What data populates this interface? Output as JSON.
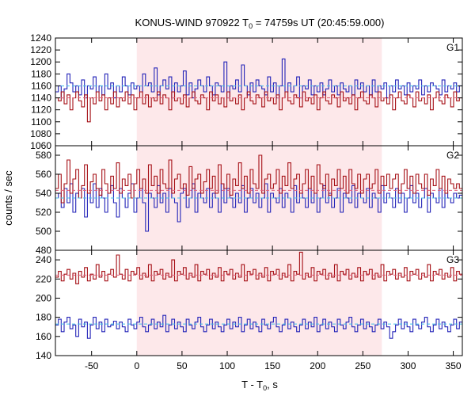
{
  "chart_data": {
    "type": "line",
    "title_main": "KONUS-WIND 970922 T",
    "title_sub": "0",
    "title_rest": " = 74759s UT (20:45:59.000)",
    "xlabel_main": "T - T",
    "xlabel_sub": "0",
    "xlabel_rest": ", s",
    "ylabel": "counts / sec",
    "xlim": [
      -90,
      360
    ],
    "x_ticks": [
      -50,
      0,
      50,
      100,
      150,
      200,
      250,
      300,
      350
    ],
    "highlight_interval": [
      0,
      271
    ],
    "colors": {
      "red": "#a50f15",
      "blue": "#2323b8",
      "highlight": "#fde8ea",
      "red_fit": "#e0607a",
      "blue_fit": "#40c0e8"
    },
    "panels": [
      {
        "name": "G1",
        "ylim": [
          1060,
          1240
        ],
        "y_ticks": [
          1060,
          1080,
          1100,
          1120,
          1140,
          1160,
          1180,
          1200,
          1220,
          1240
        ],
        "red_mean": 1140,
        "blue_mean": 1160,
        "blue": [
          1150,
          1160,
          1140,
          1155,
          1180,
          1165,
          1150,
          1160,
          1145,
          1170,
          1140,
          1160,
          1155,
          1175,
          1150,
          1160,
          1145,
          1180,
          1155,
          1165,
          1140,
          1160,
          1150,
          1175,
          1160,
          1145,
          1165,
          1155,
          1160,
          1150,
          1180,
          1160,
          1165,
          1150,
          1190,
          1145,
          1160,
          1170,
          1155,
          1175,
          1140,
          1165,
          1150,
          1160,
          1185,
          1145,
          1165,
          1140,
          1155,
          1170,
          1160,
          1150,
          1175,
          1160,
          1145,
          1165,
          1160,
          1150,
          1200,
          1140,
          1160,
          1155,
          1170,
          1150,
          1195,
          1160,
          1145,
          1165,
          1150,
          1170,
          1160,
          1155,
          1145,
          1175,
          1150,
          1165,
          1140,
          1160,
          1205,
          1150,
          1165,
          1150,
          1160,
          1175,
          1140,
          1160,
          1155,
          1170,
          1145,
          1160,
          1150,
          1165,
          1145,
          1155,
          1170,
          1150,
          1160,
          1145,
          1165,
          1155,
          1150,
          1160,
          1145,
          1170,
          1155,
          1165,
          1150,
          1160,
          1145,
          1170,
          1150,
          1160,
          1155,
          1165,
          1140,
          1160,
          1150,
          1170,
          1155,
          1160,
          1145,
          1165,
          1150,
          1160,
          1155,
          1170,
          1145,
          1160,
          1150,
          1165,
          1160,
          1155,
          1145,
          1170,
          1150,
          1160,
          1155,
          1165,
          1150,
          1160
        ],
        "red": [
          1140,
          1135,
          1150,
          1130,
          1145,
          1120,
          1140,
          1150,
          1135,
          1125,
          1145,
          1100,
          1140,
          1130,
          1150,
          1135,
          1145,
          1120,
          1140,
          1130,
          1150,
          1125,
          1140,
          1135,
          1150,
          1130,
          1145,
          1120,
          1140,
          1150,
          1130,
          1145,
          1125,
          1140,
          1135,
          1150,
          1130,
          1145,
          1140,
          1120,
          1150,
          1135,
          1140,
          1130,
          1145,
          1125,
          1140,
          1150,
          1135,
          1130,
          1145,
          1140,
          1120,
          1150,
          1135,
          1145,
          1130,
          1140,
          1125,
          1150,
          1135,
          1140,
          1130,
          1145,
          1120,
          1140,
          1150,
          1135,
          1130,
          1145,
          1140,
          1125,
          1150,
          1135,
          1140,
          1130,
          1145,
          1120,
          1140,
          1150,
          1135,
          1130,
          1145,
          1140,
          1125,
          1150,
          1135,
          1140,
          1130,
          1145,
          1120,
          1140,
          1150,
          1135,
          1130,
          1145,
          1140,
          1125,
          1150,
          1135,
          1140,
          1130,
          1145,
          1120,
          1140,
          1150,
          1135,
          1130,
          1145,
          1140,
          1125,
          1150,
          1135,
          1140,
          1130,
          1145,
          1120,
          1140,
          1150,
          1135,
          1130,
          1145,
          1140,
          1125,
          1150,
          1135,
          1140,
          1130,
          1145,
          1120,
          1140,
          1150,
          1135,
          1130,
          1145,
          1140,
          1125,
          1150,
          1135,
          1140
        ]
      },
      {
        "name": "G2",
        "ylim": [
          480,
          590
        ],
        "y_ticks": [
          480,
          500,
          520,
          540,
          560,
          580
        ],
        "red_mean": 543,
        "blue_mean": 535,
        "red": [
          545,
          560,
          530,
          550,
          575,
          540,
          555,
          565,
          535,
          548,
          570,
          540,
          552,
          560,
          545,
          538,
          565,
          550,
          540,
          558,
          545,
          572,
          540,
          555,
          548,
          560,
          535,
          550,
          565,
          545,
          555,
          540,
          570,
          548,
          558,
          540,
          565,
          550,
          545,
          575,
          540,
          555,
          560,
          545,
          550,
          538,
          568,
          545,
          555,
          560,
          540,
          552,
          565,
          545,
          558,
          540,
          570,
          550,
          545,
          560,
          538,
          555,
          548,
          572,
          545,
          558,
          540,
          565,
          550,
          545,
          580,
          540,
          555,
          560,
          545,
          550,
          565,
          540,
          558,
          548,
          572,
          545,
          555,
          560,
          540,
          550,
          565,
          545,
          558,
          540,
          570,
          550,
          545,
          560,
          538,
          555,
          548,
          565,
          545,
          558,
          540,
          565,
          550,
          545,
          560,
          540,
          555,
          560,
          545,
          550,
          565,
          540,
          558,
          548,
          560,
          545,
          555,
          560,
          540,
          550,
          565,
          545,
          558,
          540,
          560,
          550,
          545,
          560,
          538,
          555,
          548,
          565,
          545,
          558,
          540,
          555,
          550,
          545,
          550,
          545
        ],
        "blue": [
          535,
          540,
          525,
          545,
          530,
          550,
          520,
          540,
          535,
          545,
          515,
          540,
          530,
          550,
          525,
          545,
          535,
          520,
          540,
          548,
          530,
          515,
          545,
          535,
          525,
          540,
          550,
          520,
          535,
          545,
          530,
          500,
          540,
          535,
          525,
          548,
          530,
          540,
          520,
          545,
          535,
          530,
          510,
          540,
          545,
          525,
          535,
          550,
          520,
          540,
          535,
          530,
          545,
          525,
          540,
          535,
          520,
          550,
          530,
          545,
          535,
          525,
          540,
          530,
          548,
          520,
          535,
          545,
          530,
          540,
          525,
          535,
          550,
          520,
          540,
          535,
          530,
          545,
          525,
          540,
          535,
          520,
          548,
          530,
          540,
          535,
          525,
          545,
          530,
          540,
          520,
          535,
          548,
          530,
          540,
          525,
          535,
          545,
          520,
          540,
          535,
          530,
          548,
          525,
          540,
          535,
          530,
          545,
          525,
          540,
          535,
          520,
          548,
          530,
          540,
          535,
          525,
          545,
          530,
          540,
          520,
          535,
          548,
          530,
          540,
          525,
          535,
          545,
          520,
          540,
          535,
          530,
          545,
          525,
          540,
          535,
          530,
          540,
          535,
          538
        ]
      },
      {
        "name": "G3",
        "ylim": [
          140,
          250
        ],
        "y_ticks": [
          140,
          160,
          180,
          200,
          220,
          240
        ],
        "red_mean": 224,
        "blue_mean": 173,
        "red": [
          222,
          228,
          218,
          225,
          230,
          220,
          226,
          215,
          228,
          222,
          232,
          218,
          225,
          220,
          235,
          222,
          228,
          218,
          225,
          230,
          222,
          245,
          225,
          220,
          230,
          218,
          228,
          225,
          232,
          220,
          226,
          222,
          235,
          218,
          228,
          225,
          230,
          220,
          226,
          222,
          240,
          218,
          228,
          225,
          232,
          220,
          226,
          222,
          235,
          218,
          228,
          225,
          230,
          220,
          226,
          222,
          232,
          218,
          228,
          225,
          230,
          220,
          226,
          222,
          235,
          218,
          228,
          225,
          230,
          220,
          226,
          222,
          232,
          218,
          228,
          225,
          230,
          220,
          226,
          222,
          235,
          218,
          228,
          225,
          248,
          220,
          226,
          222,
          232,
          218,
          228,
          225,
          230,
          220,
          226,
          222,
          235,
          218,
          228,
          225,
          230,
          220,
          226,
          222,
          232,
          218,
          228,
          225,
          230,
          220,
          226,
          222,
          235,
          218,
          228,
          225,
          230,
          220,
          226,
          222,
          232,
          218,
          228,
          225,
          230,
          220,
          226,
          222,
          235,
          218,
          228,
          225,
          230,
          220,
          226,
          222,
          232,
          218,
          228,
          225
        ],
        "blue": [
          172,
          178,
          165,
          175,
          180,
          168,
          172,
          160,
          178,
          170,
          175,
          158,
          172,
          180,
          168,
          175,
          165,
          178,
          170,
          172,
          176,
          168,
          175,
          170,
          165,
          178,
          172,
          168,
          175,
          180,
          170,
          165,
          172,
          178,
          168,
          175,
          170,
          182,
          165,
          172,
          178,
          168,
          175,
          170,
          165,
          178,
          172,
          168,
          175,
          180,
          170,
          165,
          172,
          178,
          168,
          175,
          170,
          165,
          172,
          178,
          168,
          175,
          170,
          180,
          165,
          172,
          178,
          168,
          175,
          170,
          165,
          178,
          172,
          168,
          175,
          180,
          170,
          165,
          172,
          178,
          168,
          175,
          170,
          165,
          172,
          178,
          168,
          175,
          170,
          180,
          165,
          172,
          178,
          168,
          175,
          170,
          165,
          178,
          172,
          168,
          175,
          180,
          170,
          165,
          172,
          178,
          168,
          175,
          170,
          165,
          172,
          178,
          168,
          175,
          170,
          158,
          165,
          172,
          178,
          168,
          175,
          170,
          165,
          178,
          172,
          168,
          175,
          180,
          170,
          165,
          172,
          178,
          168,
          175,
          170,
          165,
          172,
          178,
          168,
          175
        ]
      }
    ]
  }
}
